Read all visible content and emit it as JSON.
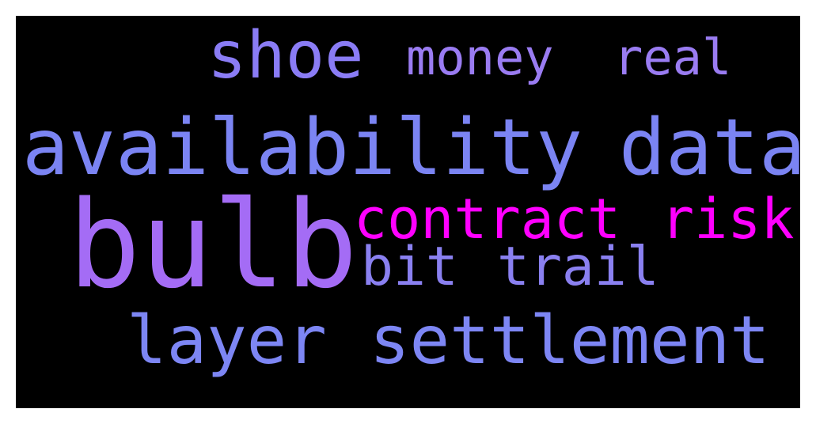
{
  "words": [
    {
      "key": "shoe",
      "text": "shoe",
      "color": "#8a7cf5"
    },
    {
      "key": "money",
      "text": "money",
      "color": "#9a7cf2"
    },
    {
      "key": "real",
      "text": "real",
      "color": "#9a7cf2"
    },
    {
      "key": "availability",
      "text": "availability",
      "color": "#7b84f3"
    },
    {
      "key": "data",
      "text": "data",
      "color": "#7b84f3"
    },
    {
      "key": "bulb",
      "text": "bulb",
      "color": "#a46cf5"
    },
    {
      "key": "contract",
      "text": "contract",
      "color": "#ff00ff"
    },
    {
      "key": "risk",
      "text": "risk",
      "color": "#ff00ff"
    },
    {
      "key": "bit",
      "text": "bit",
      "color": "#8a80f0"
    },
    {
      "key": "trail",
      "text": "trail",
      "color": "#8a80f0"
    },
    {
      "key": "layer",
      "text": "layer",
      "color": "#7d86f4"
    },
    {
      "key": "settlement",
      "text": "settlement",
      "color": "#7d86f4"
    }
  ],
  "background": "#000000"
}
